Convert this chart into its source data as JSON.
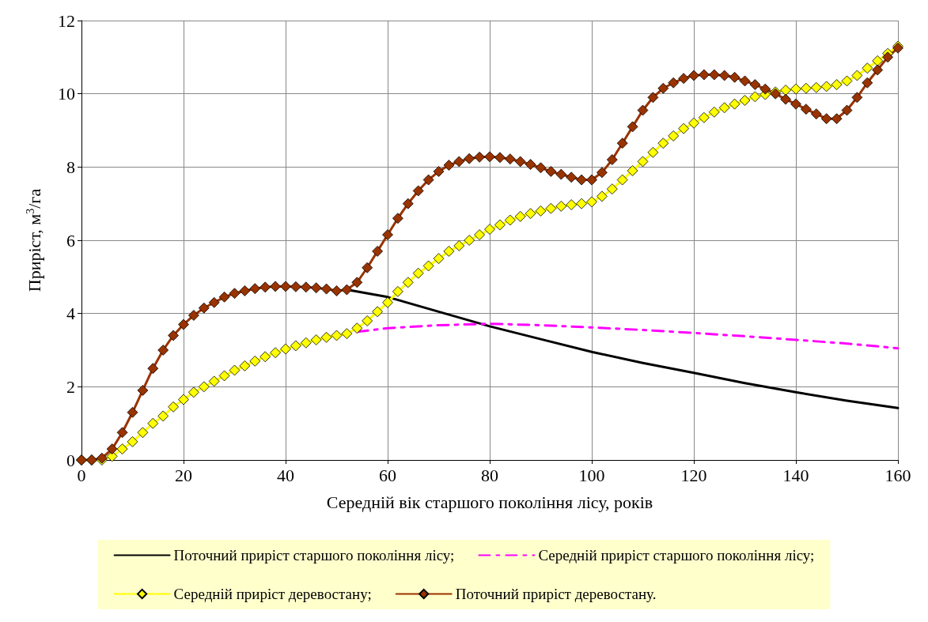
{
  "chart_data": {
    "type": "line",
    "xlabel": "Середній вік старшого покоління лісу, років",
    "ylabel": "Приріст, м$^{3}$/га",
    "xlim": [
      0,
      160
    ],
    "xticks": [
      0,
      20,
      40,
      60,
      80,
      100,
      120,
      140,
      160
    ],
    "ylim": [
      0,
      12
    ],
    "yticks": [
      0,
      2,
      4,
      6,
      8,
      10,
      12
    ],
    "grid": true,
    "legend": "bottom",
    "series": [
      {
        "name": "Поточний приріст старшого покоління лісу;",
        "color": "#000000",
        "marker": "none",
        "line_style": "solid",
        "x": [
          52,
          60,
          70,
          80,
          90,
          100,
          110,
          120,
          130,
          140,
          150,
          160
        ],
        "values": [
          4.65,
          4.45,
          4.05,
          3.65,
          3.3,
          2.95,
          2.65,
          2.38,
          2.1,
          1.85,
          1.62,
          1.42
        ]
      },
      {
        "name": "Середній приріст старшого покоління лісу;",
        "color": "#ff00ff",
        "marker": "none",
        "line_style": "dashed",
        "x": [
          54,
          60,
          70,
          80,
          90,
          100,
          110,
          120,
          130,
          140,
          150,
          160
        ],
        "values": [
          3.5,
          3.6,
          3.68,
          3.72,
          3.68,
          3.62,
          3.55,
          3.47,
          3.38,
          3.28,
          3.18,
          3.05
        ]
      },
      {
        "name": "Середній приріст деревостану;",
        "color": "#ffff00",
        "marker": "diamond",
        "line_style": "solid",
        "x": [
          0,
          2,
          4,
          6,
          8,
          10,
          12,
          14,
          16,
          18,
          20,
          22,
          24,
          26,
          28,
          30,
          32,
          34,
          36,
          38,
          40,
          42,
          44,
          46,
          48,
          50,
          52,
          54,
          56,
          58,
          60,
          62,
          64,
          66,
          68,
          70,
          72,
          74,
          76,
          78,
          80,
          82,
          84,
          86,
          88,
          90,
          92,
          94,
          96,
          98,
          100,
          102,
          104,
          106,
          108,
          110,
          112,
          114,
          116,
          118,
          120,
          122,
          124,
          126,
          128,
          130,
          132,
          134,
          136,
          138,
          140,
          142,
          144,
          146,
          148,
          150,
          152,
          154,
          156,
          158,
          160
        ],
        "values": [
          0,
          0,
          0,
          0.1,
          0.3,
          0.5,
          0.75,
          1.0,
          1.2,
          1.45,
          1.65,
          1.85,
          2.0,
          2.15,
          2.3,
          2.45,
          2.57,
          2.7,
          2.82,
          2.93,
          3.03,
          3.12,
          3.2,
          3.28,
          3.35,
          3.4,
          3.45,
          3.6,
          3.8,
          4.05,
          4.3,
          4.6,
          4.85,
          5.1,
          5.3,
          5.5,
          5.7,
          5.85,
          6.0,
          6.15,
          6.3,
          6.42,
          6.55,
          6.65,
          6.73,
          6.8,
          6.87,
          6.93,
          6.97,
          7.0,
          7.05,
          7.2,
          7.4,
          7.65,
          7.9,
          8.15,
          8.4,
          8.65,
          8.85,
          9.05,
          9.2,
          9.35,
          9.5,
          9.62,
          9.72,
          9.82,
          9.92,
          9.98,
          10.05,
          10.1,
          10.13,
          10.15,
          10.17,
          10.2,
          10.25,
          10.35,
          10.5,
          10.7,
          10.9,
          11.1,
          11.3
        ]
      },
      {
        "name": "Поточний приріст деревостану.",
        "color": "#993300",
        "marker": "diamond",
        "line_style": "solid",
        "x": [
          0,
          2,
          4,
          6,
          8,
          10,
          12,
          14,
          16,
          18,
          20,
          22,
          24,
          26,
          28,
          30,
          32,
          34,
          36,
          38,
          40,
          42,
          44,
          46,
          48,
          50,
          52,
          54,
          56,
          58,
          60,
          62,
          64,
          66,
          68,
          70,
          72,
          74,
          76,
          78,
          80,
          82,
          84,
          86,
          88,
          90,
          92,
          94,
          96,
          98,
          100,
          102,
          104,
          106,
          108,
          110,
          112,
          114,
          116,
          118,
          120,
          122,
          124,
          126,
          128,
          130,
          132,
          134,
          136,
          138,
          140,
          142,
          144,
          146,
          148,
          150,
          152,
          154,
          156,
          158,
          160
        ],
        "values": [
          0,
          0,
          0.05,
          0.3,
          0.75,
          1.3,
          1.9,
          2.5,
          3.0,
          3.4,
          3.7,
          3.95,
          4.15,
          4.3,
          4.45,
          4.55,
          4.62,
          4.68,
          4.72,
          4.74,
          4.74,
          4.73,
          4.72,
          4.7,
          4.67,
          4.62,
          4.65,
          4.85,
          5.25,
          5.7,
          6.15,
          6.6,
          7.0,
          7.35,
          7.65,
          7.88,
          8.05,
          8.15,
          8.23,
          8.27,
          8.28,
          8.26,
          8.22,
          8.15,
          8.07,
          7.98,
          7.88,
          7.8,
          7.72,
          7.65,
          7.65,
          7.85,
          8.2,
          8.65,
          9.1,
          9.55,
          9.9,
          10.15,
          10.3,
          10.42,
          10.5,
          10.52,
          10.52,
          10.5,
          10.45,
          10.35,
          10.25,
          10.13,
          10.0,
          9.85,
          9.72,
          9.58,
          9.45,
          9.32,
          9.32,
          9.55,
          9.9,
          10.3,
          10.65,
          11.0,
          11.25
        ]
      }
    ]
  }
}
